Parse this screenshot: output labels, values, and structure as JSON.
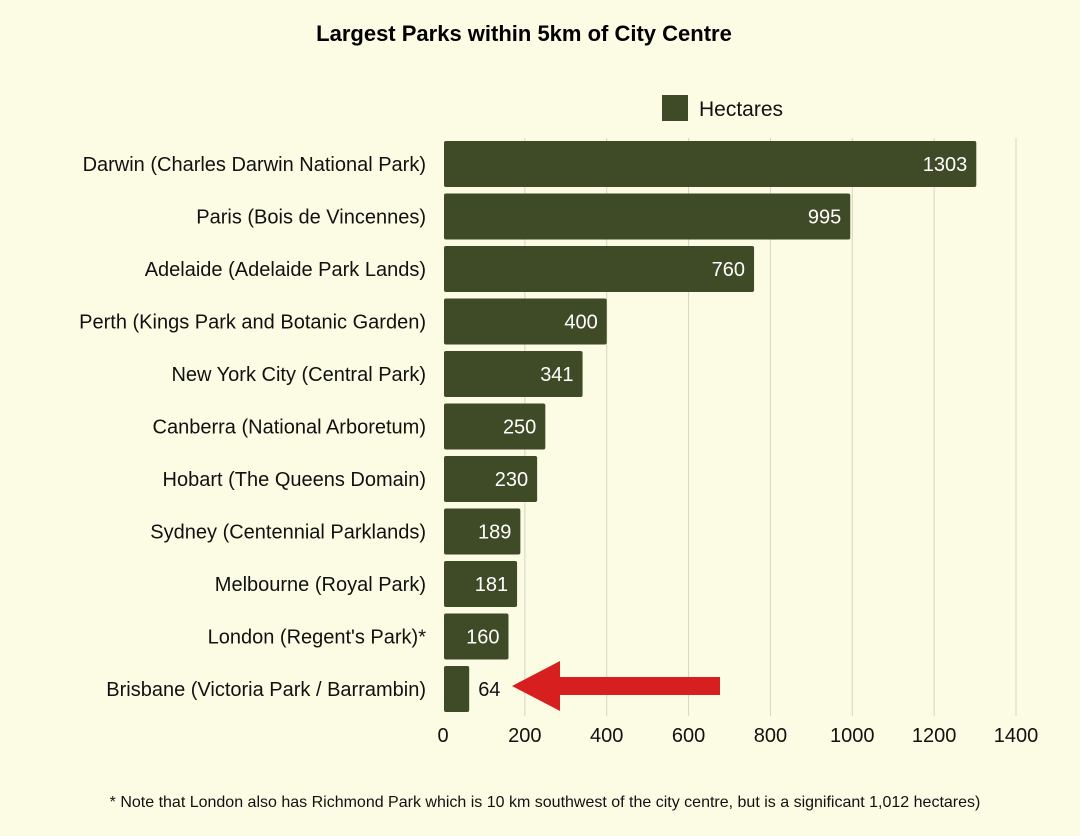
{
  "chart_data": {
    "type": "bar",
    "orientation": "horizontal",
    "title": "Largest Parks within 5km of City Centre",
    "categories": [
      "Darwin (Charles Darwin National Park)",
      "Paris (Bois de Vincennes)",
      "Adelaide (Adelaide Park Lands)",
      "Perth (Kings Park and Botanic Garden)",
      "New York City (Central Park)",
      "Canberra (National Arboretum)",
      "Hobart (The Queens Domain)",
      "Sydney (Centennial Parklands)",
      "Melbourne (Royal Park)",
      "London (Regent's Park)*",
      "Brisbane (Victoria Park / Barrambin)"
    ],
    "series": [
      {
        "name": "Hectares",
        "values": [
          1303,
          995,
          760,
          400,
          341,
          250,
          230,
          189,
          181,
          160,
          64
        ]
      }
    ],
    "xlim": [
      0,
      1400
    ],
    "x_ticks": [
      0,
      200,
      400,
      600,
      800,
      1000,
      1200,
      1400
    ],
    "grid": "vertical",
    "legend_position": "top-right",
    "bar_color": "#3f4a26",
    "label_color_inside": "#ffffff",
    "label_color_outside": "#111111",
    "arrow_color": "#d81f1f",
    "annotation": "red arrow pointing to Brisbane value",
    "footnote": "* Note that London also has Richmond Park which is 10 km southwest of the city centre, but is a significant 1,012 hectares)"
  }
}
